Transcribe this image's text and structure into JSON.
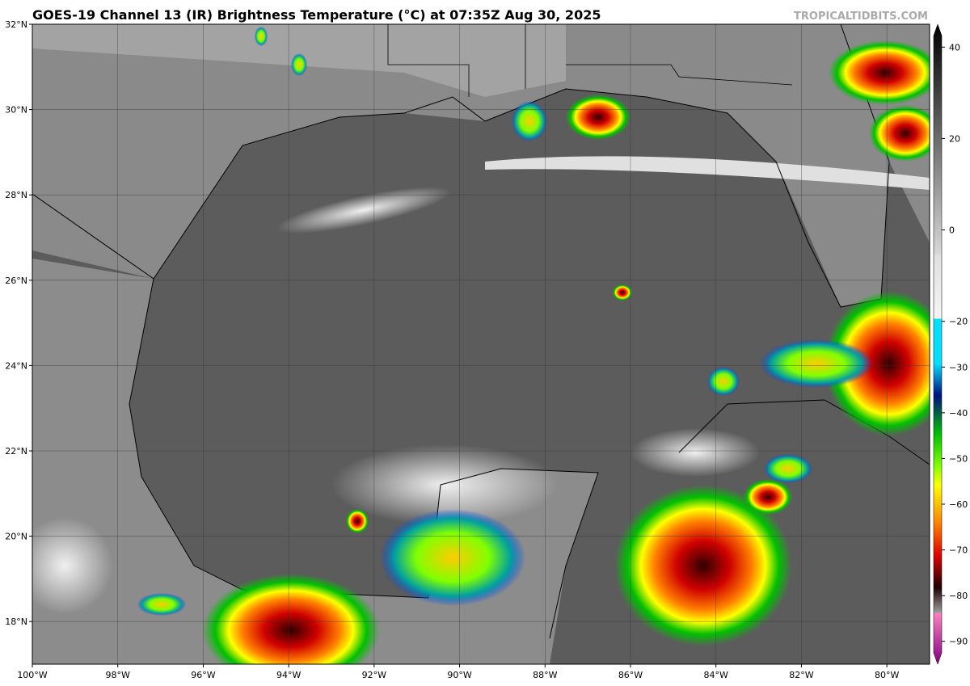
{
  "header": {
    "title": "GOES-19 Channel 13 (IR) Brightness Temperature (°C) at 07:35Z Aug 30, 2025",
    "watermark": "TROPICALTIDBITS.COM"
  },
  "map": {
    "xlim": [
      -100,
      -79
    ],
    "ylim": [
      17,
      32
    ],
    "xticks": [
      {
        "value": -100,
        "label": "100°W"
      },
      {
        "value": -98,
        "label": "98°W"
      },
      {
        "value": -96,
        "label": "96°W"
      },
      {
        "value": -94,
        "label": "94°W"
      },
      {
        "value": -92,
        "label": "92°W"
      },
      {
        "value": -90,
        "label": "90°W"
      },
      {
        "value": -88,
        "label": "88°W"
      },
      {
        "value": -86,
        "label": "86°W"
      },
      {
        "value": -84,
        "label": "84°W"
      },
      {
        "value": -82,
        "label": "82°W"
      },
      {
        "value": -80,
        "label": "80°W"
      }
    ],
    "yticks": [
      {
        "value": 32,
        "label": "32°N"
      },
      {
        "value": 30,
        "label": "30°N"
      },
      {
        "value": 28,
        "label": "28°N"
      },
      {
        "value": 26,
        "label": "26°N"
      },
      {
        "value": 24,
        "label": "24°N"
      },
      {
        "value": 22,
        "label": "22°N"
      },
      {
        "value": 20,
        "label": "20°N"
      },
      {
        "value": 18,
        "label": "18°N"
      }
    ]
  },
  "colorbar": {
    "lim": [
      -95,
      45
    ],
    "ticks": [
      40,
      20,
      0,
      {
        "value": -20,
        "label": "−20"
      },
      {
        "value": -30,
        "label": "−30"
      },
      {
        "value": -40,
        "label": "−40"
      },
      {
        "value": -50,
        "label": "−50"
      },
      {
        "value": -60,
        "label": "−60"
      },
      {
        "value": -70,
        "label": "−70"
      },
      {
        "value": -80,
        "label": "−80"
      },
      {
        "value": -90,
        "label": "−90"
      }
    ]
  }
}
